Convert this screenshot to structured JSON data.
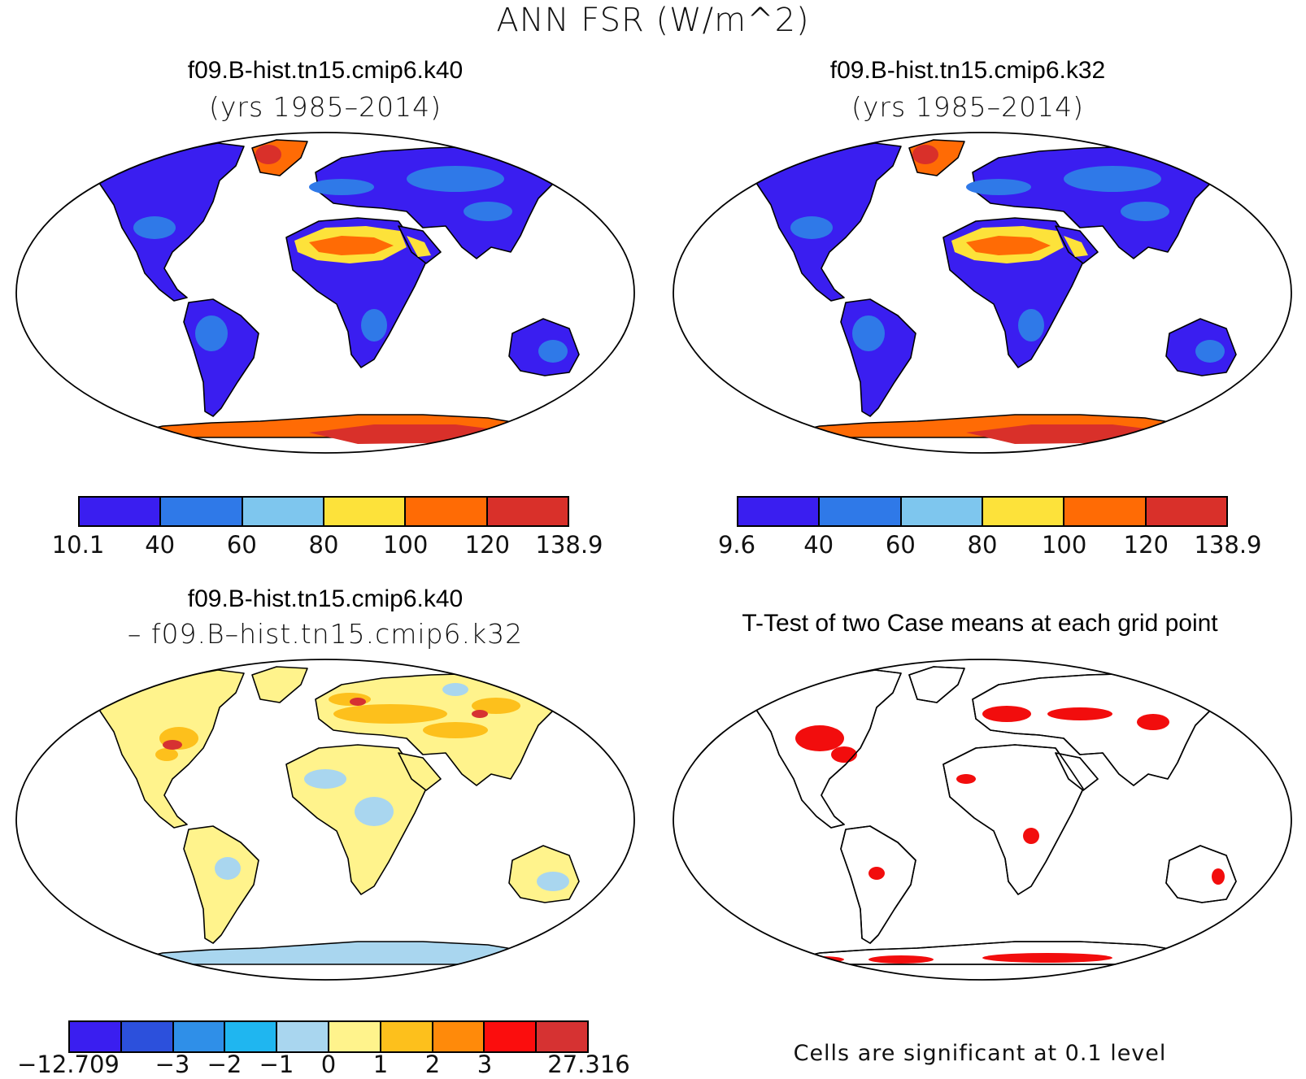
{
  "title": "ANN FSR (W/m^2)",
  "panels": [
    {
      "id": "top-left",
      "title": "f09.B-hist.tn15.cmip6.k40",
      "subtitle": "(yrs 1985–2014)"
    },
    {
      "id": "top-right",
      "title": "f09.B-hist.tn15.cmip6.k32",
      "subtitle": "(yrs 1985–2014)"
    },
    {
      "id": "bottom-left",
      "title": "f09.B-hist.tn15.cmip6.k40",
      "subtitle": "– f09.B–hist.tn15.cmip6.k32"
    },
    {
      "id": "bottom-right",
      "title": "T-Test of two Case means at each grid point",
      "note": "Cells are significant at 0.1 level"
    }
  ],
  "colorbars": {
    "top_left": {
      "colors": [
        "#3a1ef0",
        "#2f79e8",
        "#7ec6ee",
        "#fde23a",
        "#ff6b05",
        "#d9302a"
      ],
      "labels": [
        "10.1",
        "40",
        "60",
        "80",
        "100",
        "120",
        "138.9"
      ]
    },
    "top_right": {
      "colors": [
        "#3a1ef0",
        "#2f79e8",
        "#7ec6ee",
        "#fde23a",
        "#ff6b05",
        "#d9302a"
      ],
      "labels": [
        "9.6",
        "40",
        "60",
        "80",
        "100",
        "120",
        "138.9"
      ]
    },
    "bottom_left": {
      "colors": [
        "#3a1ef0",
        "#2c50dc",
        "#2f8fe8",
        "#1fb6f0",
        "#a9d6ef",
        "#fff38c",
        "#fdc01c",
        "#ff8a0a",
        "#fb0d0d",
        "#d63232"
      ],
      "labels": [
        "−12.709",
        "−3",
        "−2",
        "−1",
        "0",
        "1",
        "2",
        "3",
        "27.316"
      ]
    }
  },
  "map_palette": {
    "land_low": "#3a1ef0",
    "land_mid": "#2f79e8",
    "desert": "#fde23a",
    "desert_hot": "#ff6b05",
    "ice": "#ff6b05",
    "ice_core": "#d9302a",
    "diff_land": "#fff38c",
    "diff_pos": "#fdc01c",
    "diff_neg": "#a9d6ef",
    "sig": "#f20d0d"
  }
}
